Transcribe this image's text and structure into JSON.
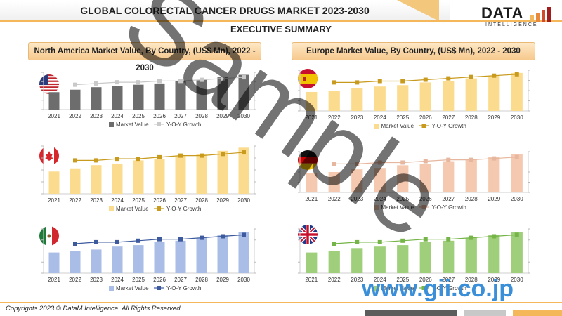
{
  "header": {
    "title": "GLOBAL COLORECTAL CANCER DRUGS MARKET 2023-2030",
    "subtitle": "EXECUTIVE SUMMARY",
    "logo_main": "DATA",
    "logo_sub": "INTELLIGENCE"
  },
  "panels": {
    "left_title": "North America Market Value, By Country, (US$ Mn), 2022 - 2030",
    "right_title": "Europe Market Value, By Country, (US$ Mn), 2022 - 2030"
  },
  "watermark": "Sample",
  "gii_watermark": "www.gii.co.jp",
  "footer": "Copyrights 2023 © DataM Intelligence. All Rights Reserved.",
  "colors": {
    "accent": "#f4b85a",
    "us_bar": "#6d6d6d",
    "us_line": "#c9c9c9",
    "ca_bar": "#fbdc8f",
    "ca_line": "#c89a1d",
    "mx_bar": "#a9bde6",
    "mx_line": "#3d5a9e",
    "es_bar": "#fbdc8f",
    "es_line": "#c89a1d",
    "de_bar": "#f4c9b0",
    "de_line": "#e6b79e",
    "uk_bar": "#9fcf7a",
    "uk_line": "#75b447"
  },
  "chart_data": [
    {
      "type": "bar",
      "country": "US",
      "flag": "us-flag",
      "categories": [
        "2021",
        "2022",
        "2023",
        "2024",
        "2025",
        "2026",
        "2027",
        "2028",
        "2029",
        "2030"
      ],
      "series": [
        {
          "name": "Market Value",
          "values": [
            14,
            16,
            18,
            19,
            20,
            21,
            23,
            24,
            26,
            28
          ]
        },
        {
          "name": "Y-O-Y Growth",
          "values": [
            null,
            20,
            21,
            22,
            22,
            23,
            23,
            24,
            25,
            26
          ]
        }
      ],
      "ylim": [
        0,
        30
      ]
    },
    {
      "type": "bar",
      "country": "Canada",
      "flag": "canada-flag",
      "categories": [
        "2021",
        "2022",
        "2023",
        "2024",
        "2025",
        "2026",
        "2027",
        "2028",
        "2029",
        "2030"
      ],
      "series": [
        {
          "name": "Market Value",
          "values": [
            14,
            16,
            18,
            19,
            21,
            22,
            24,
            25,
            27,
            29
          ]
        },
        {
          "name": "Y-O-Y Growth",
          "values": [
            null,
            21,
            21,
            22,
            22,
            23,
            24,
            24,
            25,
            26
          ]
        }
      ],
      "ylim": [
        0,
        30
      ]
    },
    {
      "type": "bar",
      "country": "Mexico",
      "flag": "mexico-flag",
      "categories": [
        "2021",
        "2022",
        "2023",
        "2024",
        "2025",
        "2026",
        "2027",
        "2028",
        "2029",
        "2030"
      ],
      "series": [
        {
          "name": "Market Value",
          "values": [
            14,
            15,
            16,
            18,
            19,
            21,
            22,
            24,
            26,
            28
          ]
        },
        {
          "name": "Y-O-Y Growth",
          "values": [
            null,
            20,
            21,
            21,
            22,
            23,
            23,
            24,
            25,
            26
          ]
        }
      ],
      "ylim": [
        0,
        30
      ]
    },
    {
      "type": "bar",
      "country": "Spain",
      "flag": "spain-flag",
      "categories": [
        "2021",
        "2022",
        "2023",
        "2024",
        "2025",
        "2026",
        "2027",
        "2028",
        "2029",
        "2030"
      ],
      "series": [
        {
          "name": "Market Value",
          "values": [
            14,
            15,
            17,
            18,
            19,
            21,
            22,
            24,
            26,
            28
          ]
        },
        {
          "name": "Y-O-Y Growth",
          "values": [
            null,
            21,
            21,
            22,
            22,
            23,
            24,
            25,
            26,
            27
          ]
        }
      ],
      "ylim": [
        0,
        30
      ]
    },
    {
      "type": "bar",
      "country": "Germany",
      "flag": "germany-flag",
      "categories": [
        "2021",
        "2022",
        "2023",
        "2024",
        "2025",
        "2026",
        "2027",
        "2028",
        "2029",
        "2030"
      ],
      "series": [
        {
          "name": "Market Value",
          "values": [
            14,
            15,
            17,
            18,
            20,
            21,
            23,
            24,
            26,
            28
          ]
        },
        {
          "name": "Y-O-Y Growth",
          "values": [
            null,
            21,
            21,
            22,
            22,
            23,
            24,
            24,
            25,
            26
          ]
        }
      ],
      "ylim": [
        0,
        30
      ]
    },
    {
      "type": "bar",
      "country": "United Kingdom",
      "flag": "uk-flag",
      "categories": [
        "2021",
        "2022",
        "2023",
        "2024",
        "2025",
        "2026",
        "2027",
        "2028",
        "2029",
        "2030"
      ],
      "series": [
        {
          "name": "Market Value",
          "values": [
            14,
            15,
            17,
            18,
            19,
            21,
            22,
            24,
            26,
            28
          ]
        },
        {
          "name": "Y-O-Y Growth",
          "values": [
            null,
            20,
            21,
            21,
            22,
            23,
            23,
            24,
            25,
            26
          ]
        }
      ],
      "ylim": [
        0,
        30
      ]
    }
  ]
}
